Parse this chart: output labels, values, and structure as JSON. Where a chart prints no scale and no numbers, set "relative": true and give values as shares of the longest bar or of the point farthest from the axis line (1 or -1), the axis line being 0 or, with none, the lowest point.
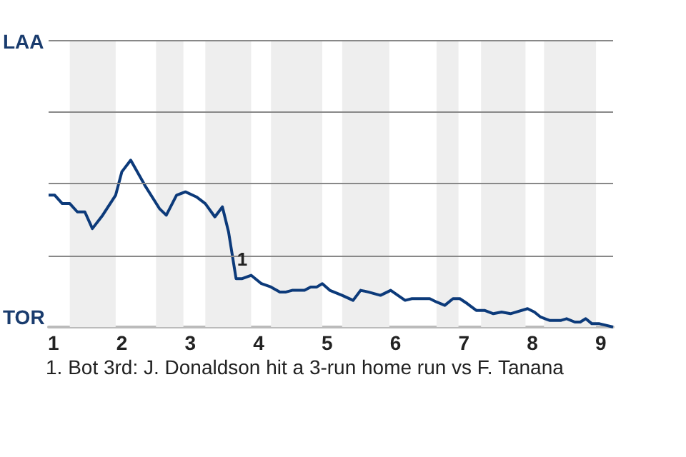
{
  "chart_data": {
    "type": "line",
    "x": [
      0.93,
      1.02,
      1.13,
      1.24,
      1.35,
      1.46,
      1.57,
      1.72,
      1.91,
      2.0,
      2.13,
      2.35,
      2.55,
      2.65,
      2.8,
      2.93,
      3.09,
      3.22,
      3.36,
      3.47,
      3.56,
      3.67,
      3.76,
      3.89,
      4.04,
      4.18,
      4.31,
      4.4,
      4.49,
      4.67,
      4.76,
      4.85,
      4.93,
      5.04,
      5.22,
      5.38,
      5.49,
      5.6,
      5.78,
      5.93,
      6.14,
      6.24,
      6.5,
      6.6,
      6.72,
      6.84,
      6.94,
      7.05,
      7.18,
      7.3,
      7.43,
      7.55,
      7.68,
      7.93,
      8.03,
      8.12,
      8.25,
      8.42,
      8.5,
      8.62,
      8.7,
      8.78,
      8.87,
      8.98,
      9.08,
      9.18
    ],
    "series": [
      {
        "color": "#0c3a7a",
        "values": [
          0.79,
          0.79,
          0.74,
          0.74,
          0.69,
          0.69,
          0.59,
          0.67,
          0.79,
          0.93,
          1,
          0.84,
          0.71,
          0.67,
          0.79,
          0.81,
          0.78,
          0.74,
          0.66,
          0.72,
          0.57,
          0.29,
          0.29,
          0.31,
          0.26,
          0.24,
          0.21,
          0.21,
          0.22,
          0.22,
          0.24,
          0.24,
          0.26,
          0.22,
          0.19,
          0.16,
          0.22,
          0.21,
          0.19,
          0.22,
          0.16,
          0.17,
          0.17,
          0.15,
          0.13,
          0.17,
          0.17,
          0.14,
          0.1,
          0.1,
          0.08,
          0.09,
          0.08,
          0.11,
          0.09,
          0.06,
          0.04,
          0.04,
          0.05,
          0.03,
          0.03,
          0.05,
          0.02,
          0.02,
          0.01,
          0
        ]
      }
    ],
    "relative": true,
    "xlim": [
      0.93,
      9.18
    ],
    "xticks": [
      1,
      2,
      3,
      4,
      5,
      6,
      7,
      8,
      9
    ],
    "marker": "none",
    "line_style": "solid",
    "ref_lines": [
      {
        "axis": "y",
        "value": 0.43,
        "color": "#888888",
        "line_style": "solid"
      },
      {
        "axis": "y",
        "value": 0.86,
        "color": "#888888",
        "line_style": "solid"
      },
      {
        "axis": "y",
        "value": 1.29,
        "color": "#888888",
        "line_style": "solid"
      },
      {
        "axis": "y",
        "value": 1.72,
        "color": "#888888",
        "line_style": "solid"
      }
    ],
    "bands": [
      {
        "axis": "x",
        "from": 1.24,
        "to": 1.91,
        "color": "#eeeeee"
      },
      {
        "axis": "x",
        "from": 2.5,
        "to": 2.9,
        "color": "#eeeeee"
      },
      {
        "axis": "x",
        "from": 3.22,
        "to": 3.89,
        "color": "#eeeeee"
      },
      {
        "axis": "x",
        "from": 4.18,
        "to": 4.93,
        "color": "#eeeeee"
      },
      {
        "axis": "x",
        "from": 5.22,
        "to": 5.91,
        "color": "#eeeeee"
      },
      {
        "axis": "x",
        "from": 6.6,
        "to": 6.92,
        "color": "#eeeeee"
      },
      {
        "axis": "x",
        "from": 7.25,
        "to": 7.9,
        "color": "#eeeeee"
      },
      {
        "axis": "x",
        "from": 8.17,
        "to": 8.93,
        "color": "#eeeeee"
      }
    ],
    "annotations": [
      {
        "text": "1",
        "x": 3.76,
        "y": 0.29
      },
      "LAA",
      "TOR",
      "1. Bot 3rd: J. Donaldson hit a 3-run home run vs F. Tanana"
    ]
  }
}
